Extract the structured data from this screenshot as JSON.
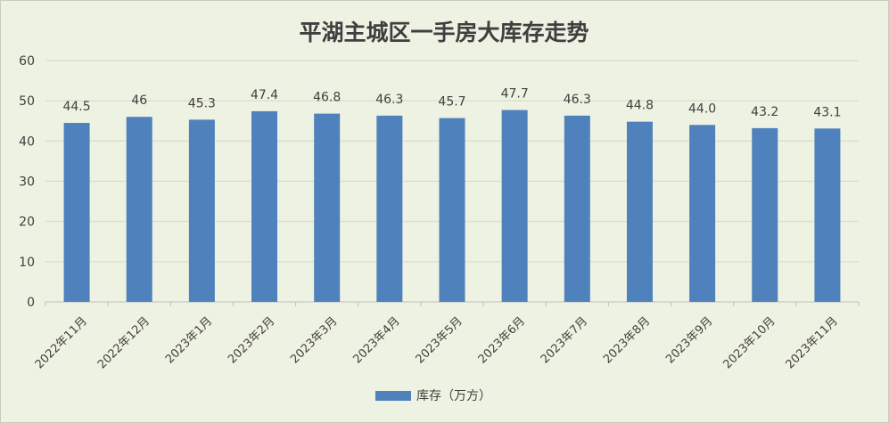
{
  "chart_data": {
    "type": "bar",
    "title": "平湖主城区一手房大库存走势",
    "categories": [
      "2022年11月",
      "2022年12月",
      "2023年1月",
      "2023年2月",
      "2023年3月",
      "2023年4月",
      "2023年5月",
      "2023年6月",
      "2023年7月",
      "2023年8月",
      "2023年9月",
      "2023年10月",
      "2023年11月"
    ],
    "series": [
      {
        "name": "库存（万方）",
        "values": [
          44.5,
          46,
          45.3,
          47.4,
          46.8,
          46.3,
          45.7,
          47.7,
          46.3,
          44.8,
          44.0,
          43.2,
          43.1
        ],
        "labels": [
          "44.5",
          "46",
          "45.3",
          "47.4",
          "46.8",
          "46.3",
          "45.7",
          "47.7",
          "46.3",
          "44.8",
          "44.0",
          "43.2",
          "43.1"
        ],
        "color": "#4f81bd"
      }
    ],
    "ylim": [
      0,
      60
    ],
    "yticks": [
      "0",
      "10",
      "20",
      "30",
      "40",
      "50",
      "60"
    ],
    "grid": true,
    "legend_position": "bottom"
  }
}
